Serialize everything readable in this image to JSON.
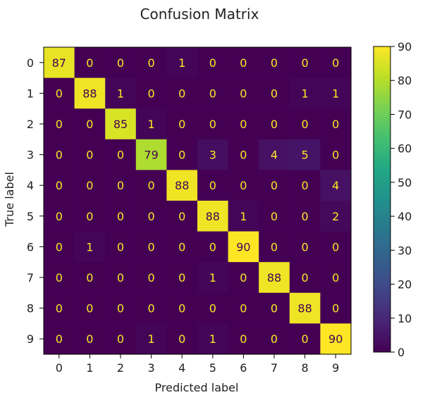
{
  "chart_data": {
    "type": "heatmap",
    "title": "Confusion Matrix",
    "xlabel": "Predicted label",
    "ylabel": "True label",
    "x_categories": [
      "0",
      "1",
      "2",
      "3",
      "4",
      "5",
      "6",
      "7",
      "8",
      "9"
    ],
    "y_categories": [
      "0",
      "1",
      "2",
      "3",
      "4",
      "5",
      "6",
      "7",
      "8",
      "9"
    ],
    "values": [
      [
        87,
        0,
        0,
        0,
        1,
        0,
        0,
        0,
        0,
        0
      ],
      [
        0,
        88,
        1,
        0,
        0,
        0,
        0,
        0,
        1,
        1
      ],
      [
        0,
        0,
        85,
        1,
        0,
        0,
        0,
        0,
        0,
        0
      ],
      [
        0,
        0,
        0,
        79,
        0,
        3,
        0,
        4,
        5,
        0
      ],
      [
        0,
        0,
        0,
        0,
        88,
        0,
        0,
        0,
        0,
        4
      ],
      [
        0,
        0,
        0,
        0,
        0,
        88,
        1,
        0,
        0,
        2
      ],
      [
        0,
        1,
        0,
        0,
        0,
        0,
        90,
        0,
        0,
        0
      ],
      [
        0,
        0,
        0,
        0,
        0,
        1,
        0,
        88,
        0,
        0
      ],
      [
        0,
        0,
        0,
        0,
        0,
        0,
        0,
        0,
        88,
        0
      ],
      [
        0,
        0,
        0,
        1,
        0,
        1,
        0,
        0,
        0,
        90
      ]
    ],
    "colormap": "viridis",
    "vmin": 0,
    "vmax": 90,
    "colorbar_ticks": [
      0,
      10,
      20,
      30,
      40,
      50,
      60,
      70,
      80,
      90
    ],
    "grid": false,
    "colorbar_position": "right"
  }
}
